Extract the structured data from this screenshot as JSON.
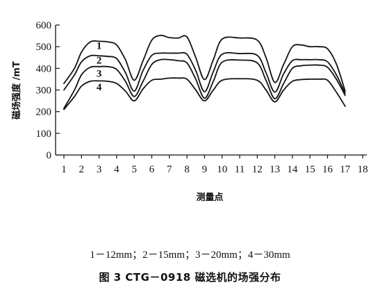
{
  "chart_data": {
    "type": "line",
    "xlabel": "测量点",
    "ylabel": "磁场强度 /mT",
    "x_ticks": [
      "1",
      "2",
      "3",
      "4",
      "5",
      "6",
      "7",
      "8",
      "9",
      "10",
      "11",
      "12",
      "13",
      "14",
      "15",
      "16",
      "17",
      "18"
    ],
    "y_ticks": [
      "0",
      "100",
      "200",
      "300",
      "400",
      "500",
      "600"
    ],
    "xlim": [
      1,
      18
    ],
    "ylim": [
      0,
      600
    ],
    "grid": false,
    "legend_note": "1－12mm；2－15mm；3－20mm；4－30mm",
    "series": [
      {
        "name": "1",
        "label_at": {
          "x": 3.0,
          "y": 505
        },
        "x": [
          1,
          1.6,
          2,
          2.5,
          3,
          3.5,
          4,
          4.5,
          5,
          5.5,
          6,
          6.5,
          7,
          7.5,
          8,
          8.5,
          9,
          9.5,
          10,
          11,
          12,
          12.5,
          13,
          13.5,
          14,
          14.5,
          15,
          15.5,
          16,
          16.5,
          17
        ],
        "y": [
          330,
          400,
          475,
          522,
          525,
          522,
          508,
          440,
          345,
          435,
          530,
          552,
          542,
          540,
          545,
          450,
          348,
          440,
          535,
          540,
          530,
          450,
          335,
          418,
          500,
          508,
          500,
          500,
          490,
          420,
          295
        ]
      },
      {
        "name": "2",
        "label_at": {
          "x": 3.0,
          "y": 438
        },
        "x": [
          1,
          1.6,
          2,
          2.5,
          3,
          3.5,
          4,
          4.5,
          5,
          5.5,
          6,
          6.5,
          7,
          7.5,
          8,
          8.5,
          9,
          9.5,
          10,
          11,
          12,
          12.5,
          13,
          13.5,
          14,
          14.5,
          15,
          15.5,
          16,
          16.5,
          17
        ],
        "y": [
          300,
          370,
          430,
          458,
          458,
          455,
          445,
          380,
          295,
          390,
          460,
          470,
          470,
          470,
          465,
          390,
          292,
          385,
          465,
          468,
          460,
          380,
          290,
          375,
          435,
          440,
          440,
          440,
          430,
          370,
          285
        ]
      },
      {
        "name": "3",
        "label_at": {
          "x": 3.0,
          "y": 377
        },
        "x": [
          1,
          1.6,
          2,
          2.5,
          3,
          3.5,
          4,
          4.5,
          5,
          5.5,
          6,
          6.5,
          7,
          7.5,
          8,
          8.5,
          9,
          9.5,
          10,
          11,
          12,
          12.5,
          13,
          13.5,
          14,
          14.5,
          15,
          15.5,
          16,
          16.5,
          17
        ],
        "y": [
          215,
          300,
          370,
          405,
          408,
          408,
          395,
          340,
          270,
          340,
          418,
          440,
          440,
          435,
          425,
          350,
          262,
          340,
          428,
          438,
          425,
          345,
          260,
          330,
          400,
          412,
          415,
          415,
          405,
          350,
          275
        ]
      },
      {
        "name": "4",
        "label_at": {
          "x": 3.0,
          "y": 315
        },
        "x": [
          1,
          1.6,
          2,
          2.5,
          3,
          3.5,
          4,
          4.5,
          5,
          5.5,
          6,
          6.5,
          7,
          7.5,
          8,
          8.5,
          9,
          9.5,
          10,
          11,
          12,
          12.5,
          13,
          13.5,
          14,
          14.5,
          15,
          15.5,
          16,
          16.5,
          17
        ],
        "y": [
          210,
          270,
          318,
          340,
          342,
          340,
          330,
          295,
          250,
          305,
          345,
          350,
          355,
          355,
          350,
          300,
          250,
          300,
          345,
          352,
          345,
          300,
          245,
          300,
          340,
          348,
          350,
          350,
          345,
          290,
          225
        ]
      }
    ]
  },
  "caption": "图 3 CTG－0918 磁选机的场强分布"
}
